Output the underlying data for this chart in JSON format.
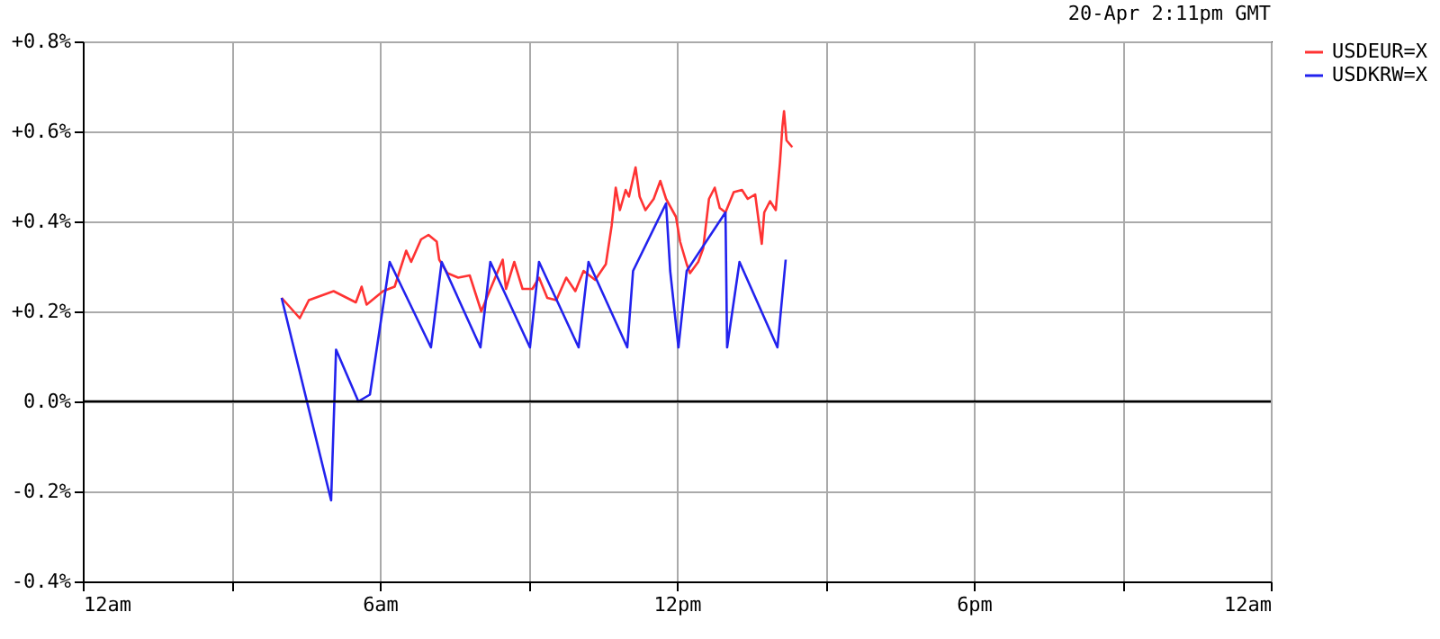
{
  "chart_data": {
    "type": "line",
    "title": "20-Apr 2:11pm GMT",
    "xlim": [
      "--04-20T00:00",
      "--04-21T00:00"
    ],
    "xticks": [
      {
        "value": "--04-20T00:00",
        "label": "12am"
      },
      {
        "value": "--04-20T03:00",
        "label": null
      },
      {
        "value": "--04-20T06:00",
        "label": "6am"
      },
      {
        "value": "--04-20T09:00",
        "label": null
      },
      {
        "value": "--04-20T12:00",
        "label": "12pm"
      },
      {
        "value": "--04-20T15:00",
        "label": null
      },
      {
        "value": "--04-20T18:00",
        "label": "6pm"
      },
      {
        "value": "--04-20T21:00",
        "label": null
      },
      {
        "value": "--04-21T00:00",
        "label": "12am"
      }
    ],
    "ylim": [
      -0.4,
      0.8
    ],
    "yticks": [
      {
        "value": -0.4,
        "label": "-0.4%"
      },
      {
        "value": -0.2,
        "label": "-0.2%"
      },
      {
        "value": 0,
        "label": "0.0%"
      },
      {
        "value": 0.2,
        "label": "+0.2%"
      },
      {
        "value": 0.4,
        "label": "+0.4%"
      },
      {
        "value": 0.6,
        "label": "+0.6%"
      },
      {
        "value": 0.8,
        "label": "+0.8%"
      }
    ],
    "grid": true,
    "legend": "right",
    "ref_lines": [
      {
        "axis": "y",
        "value": 0,
        "color": "#000000"
      }
    ],
    "series": [
      {
        "name": "USDEUR=X",
        "color": "#ff3333",
        "x": [
          "--04-20T04:01",
          "--04-20T04:23",
          "--04-20T04:34",
          "--04-20T05:04",
          "--04-20T05:31",
          "--04-20T05:38",
          "--04-20T05:44",
          "--04-20T06:04",
          "--04-20T06:18",
          "--04-20T06:32",
          "--04-20T06:38",
          "--04-20T06:50",
          "--04-20T06:59",
          "--04-20T07:09",
          "--04-20T07:12",
          "--04-20T07:22",
          "--04-20T07:35",
          "--04-20T07:49",
          "--04-20T08:03",
          "--04-20T08:13",
          "--04-20T08:29",
          "--04-20T08:33",
          "--04-20T08:43",
          "--04-20T08:53",
          "--04-20T09:05",
          "--04-20T09:13",
          "--04-20T09:23",
          "--04-20T09:34",
          "--04-20T09:46",
          "--04-20T09:57",
          "--04-20T10:07",
          "--04-20T10:21",
          "--04-20T10:34",
          "--04-20T10:41",
          "--04-20T10:46",
          "--04-20T10:51",
          "--04-20T10:58",
          "--04-20T11:02",
          "--04-20T11:10",
          "--04-20T11:15",
          "--04-20T11:22",
          "--04-20T11:32",
          "--04-20T11:40",
          "--04-20T11:47",
          "--04-20T11:59",
          "--04-20T12:04",
          "--04-20T12:12",
          "--04-20T12:16",
          "--04-20T12:26",
          "--04-20T12:32",
          "--04-20T12:39",
          "--04-20T12:46",
          "--04-20T12:52",
          "--04-20T12:59",
          "--04-20T13:09",
          "--04-20T13:19",
          "--04-20T13:26",
          "--04-20T13:35",
          "--04-20T13:40",
          "--04-20T13:43",
          "--04-20T13:46",
          "--04-20T13:53",
          "--04-20T14:00",
          "--04-20T14:05",
          "--04-20T14:08",
          "--04-20T14:10",
          "--04-20T14:13",
          "--04-20T14:20"
        ],
        "values": [
          0.23,
          0.185,
          0.225,
          0.245,
          0.22,
          0.255,
          0.215,
          0.245,
          0.255,
          0.335,
          0.31,
          0.36,
          0.37,
          0.355,
          0.315,
          0.285,
          0.275,
          0.28,
          0.2,
          0.245,
          0.315,
          0.25,
          0.31,
          0.25,
          0.25,
          0.275,
          0.23,
          0.225,
          0.275,
          0.245,
          0.29,
          0.27,
          0.305,
          0.39,
          0.475,
          0.425,
          0.47,
          0.455,
          0.52,
          0.455,
          0.425,
          0.45,
          0.49,
          0.45,
          0.41,
          0.355,
          0.305,
          0.285,
          0.31,
          0.34,
          0.45,
          0.475,
          0.43,
          0.42,
          0.465,
          0.47,
          0.45,
          0.46,
          0.39,
          0.35,
          0.42,
          0.445,
          0.425,
          0.53,
          0.61,
          0.645,
          0.58,
          0.565
        ]
      },
      {
        "name": "USDKRW=X",
        "color": "#2222ee",
        "x": [
          "--04-20T04:01",
          "--04-20T05:01",
          "--04-20T05:07",
          "--04-20T05:34",
          "--04-20T05:48",
          "--04-20T06:12",
          "--04-20T07:02",
          "--04-20T07:15",
          "--04-20T08:02",
          "--04-20T08:14",
          "--04-20T09:02",
          "--04-20T09:13",
          "--04-20T10:01",
          "--04-20T10:13",
          "--04-20T11:00",
          "--04-20T11:07",
          "--04-20T11:47",
          "--04-20T11:52",
          "--04-20T12:02",
          "--04-20T12:12",
          "--04-20T12:59",
          "--04-20T13:01",
          "--04-20T13:16",
          "--04-20T14:02",
          "--04-20T14:12"
        ],
        "values": [
          0.23,
          -0.22,
          0.115,
          0.0,
          0.015,
          0.31,
          0.12,
          0.31,
          0.12,
          0.31,
          0.12,
          0.31,
          0.12,
          0.31,
          0.12,
          0.29,
          0.44,
          0.29,
          0.12,
          0.29,
          0.42,
          0.12,
          0.31,
          0.12,
          0.315
        ]
      }
    ]
  }
}
